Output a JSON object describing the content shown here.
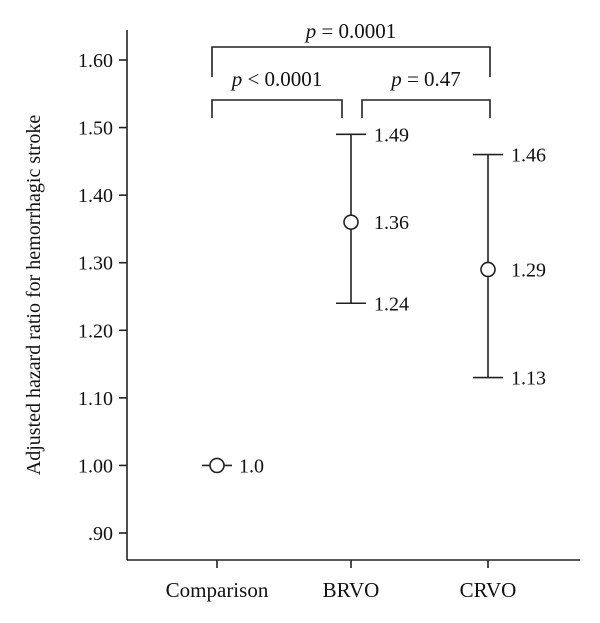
{
  "chart_data": {
    "type": "scatter",
    "ylabel": "Adjusted hazard ratio for hemorrhagic stroke",
    "xlabel": "",
    "ylim": [
      0.85,
      1.69
    ],
    "grid": false,
    "yticks": [
      {
        "value": 0.9,
        "label": ".90"
      },
      {
        "value": 1.0,
        "label": "1.00"
      },
      {
        "value": 1.1,
        "label": "1.10"
      },
      {
        "value": 1.2,
        "label": "1.20"
      },
      {
        "value": 1.3,
        "label": "1.30"
      },
      {
        "value": 1.4,
        "label": "1.40"
      },
      {
        "value": 1.5,
        "label": "1.50"
      },
      {
        "value": 1.6,
        "label": "1.60"
      }
    ],
    "categories": [
      "Comparison",
      "BRVO",
      "CRVO"
    ],
    "points": [
      {
        "category": "Comparison",
        "estimate": 1.0,
        "estimate_label": "1.0",
        "lower": 1.0,
        "upper": 1.0,
        "lower_label": "",
        "upper_label": ""
      },
      {
        "category": "BRVO",
        "estimate": 1.36,
        "estimate_label": "1.36",
        "lower": 1.24,
        "upper": 1.49,
        "lower_label": "1.24",
        "upper_label": "1.49"
      },
      {
        "category": "CRVO",
        "estimate": 1.29,
        "estimate_label": "1.29",
        "lower": 1.13,
        "upper": 1.46,
        "lower_label": "1.13",
        "upper_label": "1.46"
      }
    ],
    "comparisons": [
      {
        "from": "Comparison",
        "to": "CRVO",
        "p_symbol": "p",
        "p_text": " = 0.0001"
      },
      {
        "from": "Comparison",
        "to": "BRVO",
        "p_symbol": "p",
        "p_text": " < 0.0001"
      },
      {
        "from": "BRVO",
        "to": "CRVO",
        "p_symbol": "p",
        "p_text": " = 0.47"
      }
    ]
  }
}
